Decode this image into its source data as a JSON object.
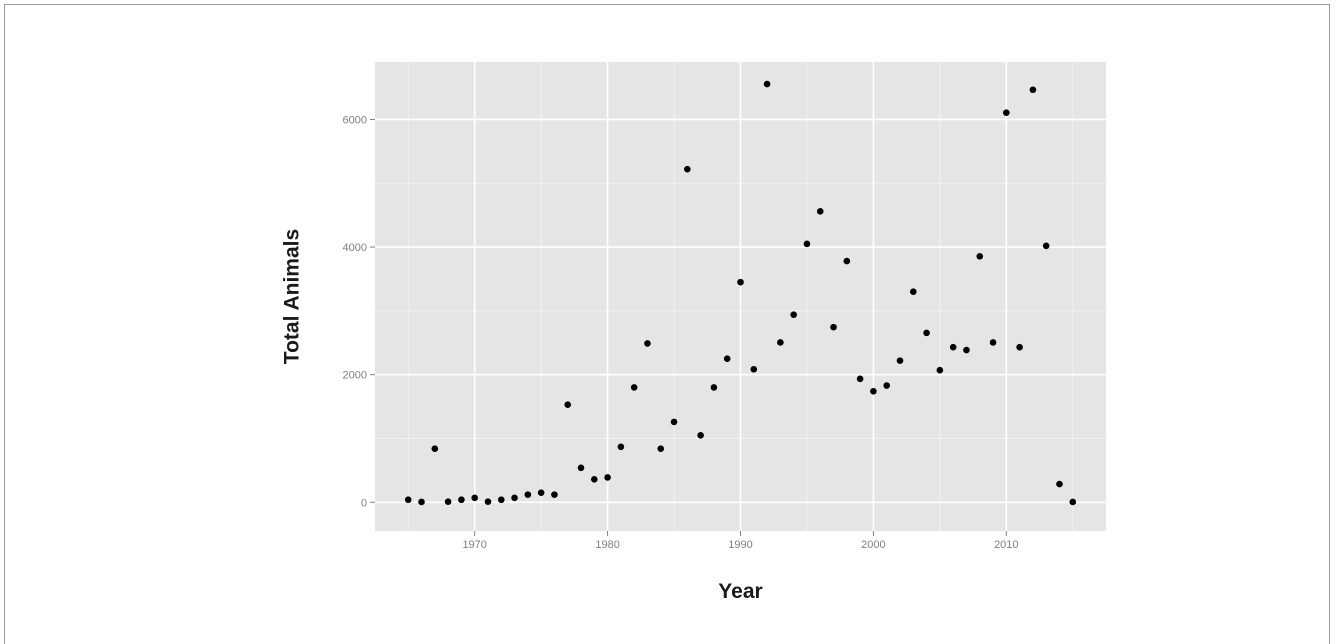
{
  "chart_data": {
    "type": "scatter",
    "title": "",
    "xlabel": "Year",
    "ylabel": "Total Animals",
    "xlim": [
      1962.5,
      2017.5
    ],
    "ylim": [
      -450,
      6900
    ],
    "x_ticks": [
      1970,
      1980,
      1990,
      2000,
      2010
    ],
    "y_ticks": [
      0,
      2000,
      4000,
      6000
    ],
    "grid": true,
    "colors": {
      "panel": "#e5e5e5",
      "grid_major": "#ffffff",
      "grid_minor": "#f2f2f2",
      "point": "#000000"
    },
    "series": [
      {
        "x": [
          1965,
          1966,
          1967,
          1968,
          1969,
          1970,
          1971,
          1972,
          1973,
          1974,
          1975,
          1976,
          1977,
          1978,
          1979,
          1980,
          1981,
          1982,
          1983,
          1984,
          1985,
          1986,
          1987,
          1988,
          1989,
          1990,
          1991,
          1992,
          1993,
          1994,
          1995,
          1996,
          1997,
          1998,
          1999,
          2000,
          2001,
          2002,
          2003,
          2004,
          2005,
          2006,
          2007,
          2008,
          2009,
          2010,
          2011,
          2012,
          2013,
          2014,
          2015
        ],
        "y": [
          40,
          5,
          840,
          10,
          40,
          70,
          10,
          40,
          70,
          120,
          150,
          120,
          1530,
          540,
          360,
          390,
          870,
          1800,
          2490,
          840,
          1260,
          5220,
          1050,
          1800,
          2250,
          3450,
          2085,
          6555,
          2505,
          2940,
          4050,
          4560,
          2745,
          3780,
          1935,
          1740,
          1830,
          2220,
          3300,
          2655,
          2070,
          2430,
          2385,
          3855,
          2505,
          6105,
          2430,
          6465,
          4020,
          285,
          5
        ]
      }
    ]
  }
}
